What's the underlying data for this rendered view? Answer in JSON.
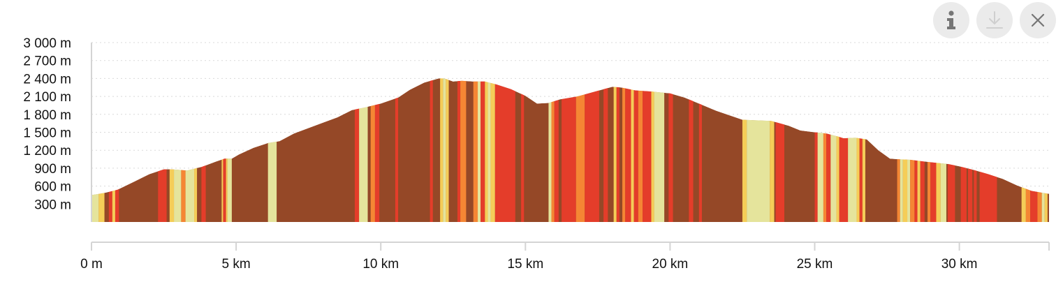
{
  "toolbar": {
    "icons": [
      "info-icon",
      "download-icon",
      "close-icon"
    ]
  },
  "colors": {
    "profile_brown": "#954827",
    "gradient_red": "#e43d2a",
    "gradient_orange": "#f58634",
    "gradient_light": "#f5cd58",
    "gradient_pale": "#e5e49c"
  },
  "chart_data": {
    "type": "area",
    "title": "",
    "xlabel": "",
    "ylabel": "",
    "x_unit": "km",
    "y_unit": "m",
    "xlim": [
      0,
      33.1
    ],
    "ylim": [
      0,
      3000
    ],
    "grid": true,
    "x_ticks": [
      {
        "value": 0,
        "label": "0 m"
      },
      {
        "value": 5,
        "label": "5 km"
      },
      {
        "value": 10,
        "label": "10 km"
      },
      {
        "value": 15,
        "label": "15 km"
      },
      {
        "value": 20,
        "label": "20 km"
      },
      {
        "value": 25,
        "label": "25 km"
      },
      {
        "value": 30,
        "label": "30 km"
      }
    ],
    "y_ticks": [
      {
        "value": 300,
        "label": "300 m"
      },
      {
        "value": 600,
        "label": "600 m"
      },
      {
        "value": 900,
        "label": "900 m"
      },
      {
        "value": 1200,
        "label": "1 200 m"
      },
      {
        "value": 1500,
        "label": "1 500 m"
      },
      {
        "value": 1800,
        "label": "1 800 m"
      },
      {
        "value": 2100,
        "label": "2 100 m"
      },
      {
        "value": 2400,
        "label": "2 400 m"
      },
      {
        "value": 2700,
        "label": "2 700 m"
      },
      {
        "value": 3000,
        "label": "3 000 m"
      }
    ],
    "elevation": {
      "x": [
        0,
        0.25,
        0.5,
        0.9,
        1.5,
        2.0,
        2.5,
        2.8,
        3.3,
        3.8,
        4.3,
        4.6,
        4.85,
        5.1,
        5.6,
        6.1,
        6.5,
        7.0,
        7.5,
        8.0,
        8.5,
        9.0,
        9.5,
        10.0,
        10.6,
        11.0,
        11.5,
        12.0,
        12.2,
        12.5,
        12.8,
        13.2,
        13.6,
        14.0,
        14.5,
        15.0,
        15.4,
        15.8,
        16.2,
        16.8,
        17.4,
        18.0,
        18.3,
        18.8,
        19.4,
        20.0,
        20.5,
        21.0,
        21.6,
        22.2,
        22.5,
        23.0,
        23.5,
        24.1,
        24.5,
        25.0,
        25.4,
        25.8,
        26.0,
        26.4,
        26.8,
        27.2,
        27.6,
        27.9,
        28.3,
        28.8,
        29.2,
        29.6,
        30.0,
        30.5,
        31.0,
        31.5,
        32.0,
        32.5,
        33.1
      ],
      "y": [
        450,
        470,
        490,
        540,
        680,
        800,
        880,
        880,
        860,
        920,
        1010,
        1060,
        1060,
        1130,
        1240,
        1320,
        1350,
        1480,
        1570,
        1660,
        1750,
        1870,
        1920,
        1980,
        2080,
        2210,
        2330,
        2400,
        2400,
        2350,
        2360,
        2350,
        2350,
        2300,
        2220,
        2110,
        1980,
        1990,
        2050,
        2100,
        2180,
        2260,
        2250,
        2200,
        2180,
        2150,
        2080,
        1980,
        1860,
        1760,
        1710,
        1700,
        1690,
        1610,
        1530,
        1500,
        1480,
        1430,
        1400,
        1410,
        1380,
        1200,
        1060,
        1050,
        1040,
        1010,
        990,
        970,
        930,
        870,
        800,
        720,
        610,
        520,
        470
      ]
    },
    "gradient_bands": [
      {
        "from": 0.0,
        "to": 0.25,
        "color": "#e5e49c"
      },
      {
        "from": 0.25,
        "to": 0.45,
        "color": "#f5cd58"
      },
      {
        "from": 0.45,
        "to": 0.6,
        "color": "#954827"
      },
      {
        "from": 0.6,
        "to": 0.72,
        "color": "#e43d2a"
      },
      {
        "from": 0.72,
        "to": 0.82,
        "color": "#f5cd58"
      },
      {
        "from": 0.82,
        "to": 0.95,
        "color": "#e43d2a"
      },
      {
        "from": 2.3,
        "to": 2.6,
        "color": "#e43d2a"
      },
      {
        "from": 2.6,
        "to": 2.7,
        "color": "#954827"
      },
      {
        "from": 2.7,
        "to": 2.85,
        "color": "#f5cd58"
      },
      {
        "from": 2.85,
        "to": 3.1,
        "color": "#e5e49c"
      },
      {
        "from": 3.1,
        "to": 3.25,
        "color": "#f58634"
      },
      {
        "from": 3.25,
        "to": 3.55,
        "color": "#e5e49c"
      },
      {
        "from": 3.55,
        "to": 3.65,
        "color": "#f5cd58"
      },
      {
        "from": 3.65,
        "to": 3.8,
        "color": "#954827"
      },
      {
        "from": 3.8,
        "to": 3.95,
        "color": "#e43d2a"
      },
      {
        "from": 4.5,
        "to": 4.55,
        "color": "#f5cd58"
      },
      {
        "from": 4.55,
        "to": 4.65,
        "color": "#e43d2a"
      },
      {
        "from": 4.65,
        "to": 4.7,
        "color": "#f5cd58"
      },
      {
        "from": 4.7,
        "to": 4.85,
        "color": "#e5e49c"
      },
      {
        "from": 6.1,
        "to": 6.4,
        "color": "#e5e49c"
      },
      {
        "from": 9.1,
        "to": 9.25,
        "color": "#e43d2a"
      },
      {
        "from": 9.25,
        "to": 9.55,
        "color": "#e5e49c"
      },
      {
        "from": 9.55,
        "to": 9.65,
        "color": "#954827"
      },
      {
        "from": 9.65,
        "to": 9.8,
        "color": "#f58634"
      },
      {
        "from": 9.8,
        "to": 9.95,
        "color": "#e43d2a"
      },
      {
        "from": 10.5,
        "to": 10.6,
        "color": "#e43d2a"
      },
      {
        "from": 11.7,
        "to": 11.8,
        "color": "#e43d2a"
      },
      {
        "from": 12.05,
        "to": 12.15,
        "color": "#f5cd58"
      },
      {
        "from": 12.15,
        "to": 12.25,
        "color": "#e5e49c"
      },
      {
        "from": 12.25,
        "to": 12.35,
        "color": "#f5cd58"
      },
      {
        "from": 12.65,
        "to": 12.75,
        "color": "#e43d2a"
      },
      {
        "from": 12.75,
        "to": 12.95,
        "color": "#f58634"
      },
      {
        "from": 13.2,
        "to": 13.35,
        "color": "#f58634"
      },
      {
        "from": 13.35,
        "to": 13.45,
        "color": "#e5e49c"
      },
      {
        "from": 13.45,
        "to": 13.6,
        "color": "#e43d2a"
      },
      {
        "from": 13.6,
        "to": 13.7,
        "color": "#f5cd58"
      },
      {
        "from": 13.7,
        "to": 13.8,
        "color": "#e5e49c"
      },
      {
        "from": 13.8,
        "to": 13.95,
        "color": "#f5cd58"
      },
      {
        "from": 13.95,
        "to": 14.65,
        "color": "#e43d2a"
      },
      {
        "from": 14.85,
        "to": 14.95,
        "color": "#e43d2a"
      },
      {
        "from": 15.8,
        "to": 15.9,
        "color": "#e5e49c"
      },
      {
        "from": 15.9,
        "to": 16.0,
        "color": "#f58634"
      },
      {
        "from": 16.0,
        "to": 16.15,
        "color": "#e43d2a"
      },
      {
        "from": 16.15,
        "to": 16.25,
        "color": "#954827"
      },
      {
        "from": 16.25,
        "to": 16.75,
        "color": "#e43d2a"
      },
      {
        "from": 16.75,
        "to": 17.05,
        "color": "#f58634"
      },
      {
        "from": 17.05,
        "to": 17.55,
        "color": "#e43d2a"
      },
      {
        "from": 17.7,
        "to": 17.85,
        "color": "#e43d2a"
      },
      {
        "from": 18.05,
        "to": 18.15,
        "color": "#f5cd58"
      },
      {
        "from": 18.15,
        "to": 18.25,
        "color": "#e43d2a"
      },
      {
        "from": 18.35,
        "to": 18.45,
        "color": "#f58634"
      },
      {
        "from": 18.45,
        "to": 18.65,
        "color": "#e43d2a"
      },
      {
        "from": 18.65,
        "to": 18.75,
        "color": "#f5cd58"
      },
      {
        "from": 18.75,
        "to": 18.9,
        "color": "#e43d2a"
      },
      {
        "from": 18.9,
        "to": 19.05,
        "color": "#f58634"
      },
      {
        "from": 19.05,
        "to": 19.35,
        "color": "#e43d2a"
      },
      {
        "from": 19.35,
        "to": 19.45,
        "color": "#f5cd58"
      },
      {
        "from": 19.45,
        "to": 19.8,
        "color": "#e5e49c"
      },
      {
        "from": 19.95,
        "to": 20.1,
        "color": "#e43d2a"
      },
      {
        "from": 20.65,
        "to": 20.8,
        "color": "#e43d2a"
      },
      {
        "from": 21.0,
        "to": 21.1,
        "color": "#e43d2a"
      },
      {
        "from": 22.5,
        "to": 22.65,
        "color": "#f5cd58"
      },
      {
        "from": 22.65,
        "to": 23.45,
        "color": "#e5e49c"
      },
      {
        "from": 23.45,
        "to": 23.6,
        "color": "#f5cd58"
      },
      {
        "from": 23.65,
        "to": 23.95,
        "color": "#e43d2a"
      },
      {
        "from": 25.0,
        "to": 25.1,
        "color": "#e43d2a"
      },
      {
        "from": 25.1,
        "to": 25.3,
        "color": "#e5e49c"
      },
      {
        "from": 25.3,
        "to": 25.4,
        "color": "#f58634"
      },
      {
        "from": 25.4,
        "to": 25.55,
        "color": "#e43d2a"
      },
      {
        "from": 25.55,
        "to": 25.75,
        "color": "#e5e49c"
      },
      {
        "from": 25.75,
        "to": 25.85,
        "color": "#f5cd58"
      },
      {
        "from": 25.85,
        "to": 26.15,
        "color": "#e43d2a"
      },
      {
        "from": 26.15,
        "to": 26.45,
        "color": "#e5e49c"
      },
      {
        "from": 26.45,
        "to": 26.55,
        "color": "#f5cd58"
      },
      {
        "from": 26.55,
        "to": 26.65,
        "color": "#e43d2a"
      },
      {
        "from": 26.65,
        "to": 26.75,
        "color": "#f5cd58"
      },
      {
        "from": 27.85,
        "to": 27.95,
        "color": "#f58634"
      },
      {
        "from": 27.95,
        "to": 28.05,
        "color": "#e5e49c"
      },
      {
        "from": 28.05,
        "to": 28.2,
        "color": "#f5cd58"
      },
      {
        "from": 28.2,
        "to": 28.3,
        "color": "#e5e49c"
      },
      {
        "from": 28.3,
        "to": 28.45,
        "color": "#f58634"
      },
      {
        "from": 28.45,
        "to": 28.55,
        "color": "#e43d2a"
      },
      {
        "from": 28.55,
        "to": 28.65,
        "color": "#f5cd58"
      },
      {
        "from": 28.65,
        "to": 28.8,
        "color": "#e43d2a"
      },
      {
        "from": 28.8,
        "to": 28.9,
        "color": "#954827"
      },
      {
        "from": 28.9,
        "to": 29.0,
        "color": "#f58634"
      },
      {
        "from": 29.0,
        "to": 29.2,
        "color": "#e43d2a"
      },
      {
        "from": 29.2,
        "to": 29.35,
        "color": "#f5cd58"
      },
      {
        "from": 29.35,
        "to": 29.55,
        "color": "#e5e49c"
      },
      {
        "from": 29.6,
        "to": 29.85,
        "color": "#e43d2a"
      },
      {
        "from": 30.05,
        "to": 30.25,
        "color": "#e43d2a"
      },
      {
        "from": 30.3,
        "to": 30.45,
        "color": "#e43d2a"
      },
      {
        "from": 30.5,
        "to": 30.6,
        "color": "#e43d2a"
      },
      {
        "from": 30.7,
        "to": 31.3,
        "color": "#e43d2a"
      },
      {
        "from": 32.15,
        "to": 32.3,
        "color": "#f5cd58"
      },
      {
        "from": 32.3,
        "to": 32.45,
        "color": "#f58634"
      },
      {
        "from": 32.45,
        "to": 32.7,
        "color": "#e43d2a"
      },
      {
        "from": 32.7,
        "to": 32.85,
        "color": "#f58634"
      },
      {
        "from": 32.85,
        "to": 32.95,
        "color": "#e5e49c"
      },
      {
        "from": 32.95,
        "to": 33.05,
        "color": "#f5cd58"
      },
      {
        "from": 33.05,
        "to": 33.1,
        "color": "#954827"
      }
    ]
  }
}
